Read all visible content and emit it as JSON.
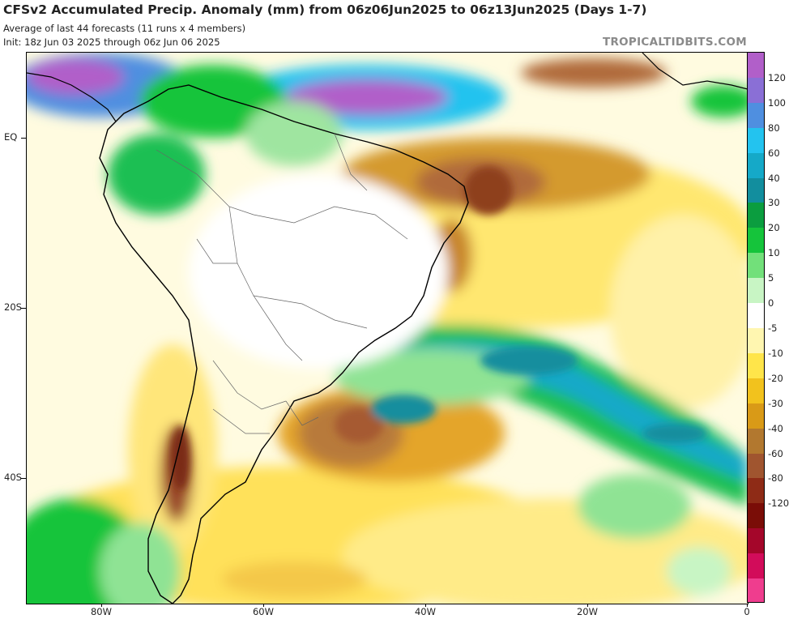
{
  "header": {
    "title": "CFSv2 Accumulated Precip. Anomaly (mm) from 06z06Jun2025 to 06z13Jun2025 (Days 1-7)",
    "subtitle1": "Average of last 44 forecasts (11 runs x 4 members)",
    "subtitle2": "Init: 18z Jun 03 2025 through 06z Jun 06 2025",
    "brand": "TROPICALTIDBITS.COM"
  },
  "axes": {
    "lat_labels": [
      "EQ",
      "20S",
      "40S"
    ],
    "lon_labels": [
      "80W",
      "60W",
      "40W",
      "20W",
      "0"
    ]
  },
  "colorbar": {
    "labels": [
      "120",
      "100",
      "80",
      "60",
      "40",
      "30",
      "20",
      "10",
      "5",
      "0",
      "-5",
      "-10",
      "-20",
      "-30",
      "-40",
      "-60",
      "-80",
      "-120"
    ],
    "colors": [
      "#b15fc9",
      "#8a6fd6",
      "#4f8fe0",
      "#23c3ef",
      "#15a9c8",
      "#128e9e",
      "#0b9d3f",
      "#15c43b",
      "#72e07a",
      "#c8f5c4",
      "#ffffff",
      "#fff6b0",
      "#ffe54a",
      "#f2c21d",
      "#d99a17",
      "#b2782f",
      "#a0552f",
      "#8e2b16",
      "#7a0d07",
      "#a4062a",
      "#d20c5a",
      "#ef3d8e"
    ]
  }
}
